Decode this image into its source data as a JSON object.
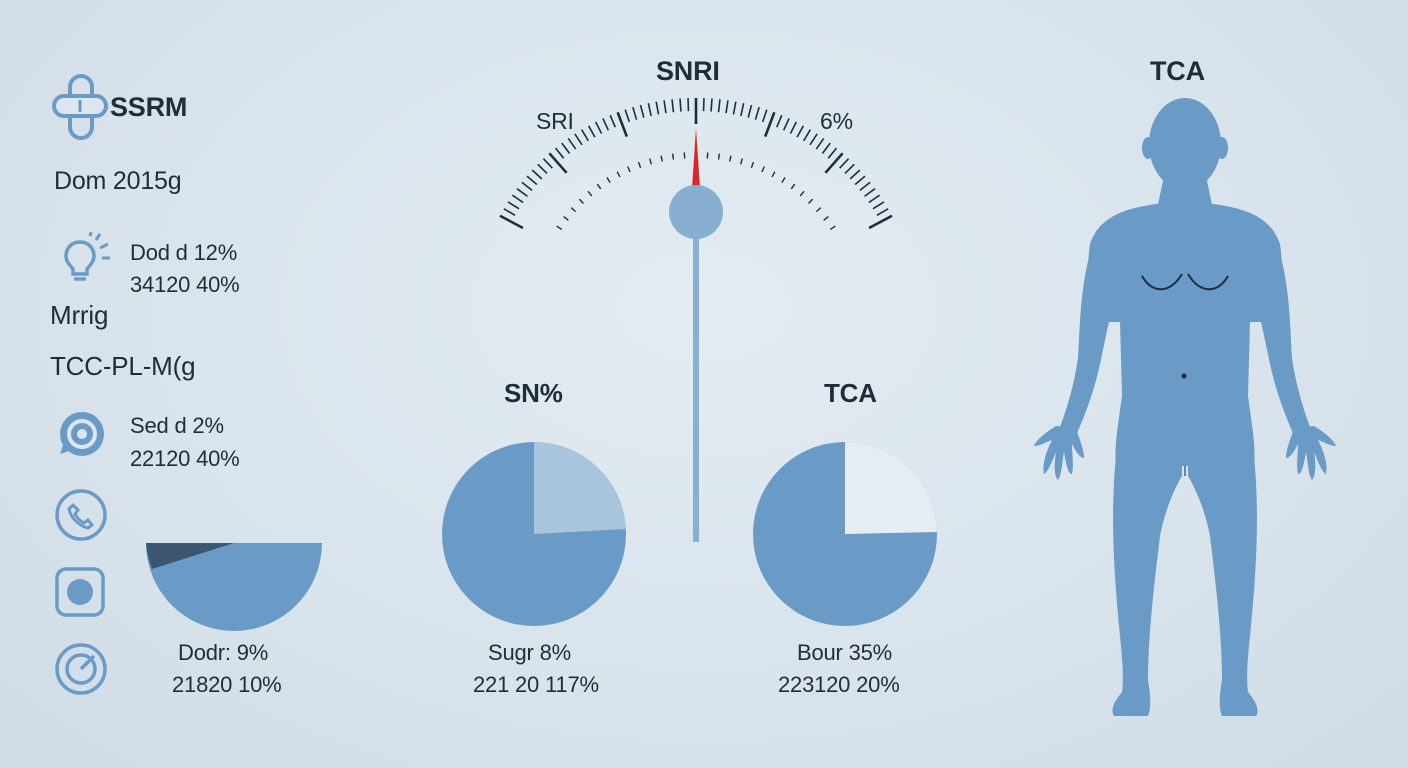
{
  "colors": {
    "background": "#dde6ee",
    "primary_blue": "#6a9bc6",
    "light_blue": "#a9c5dd",
    "pale_slice": "#e6edf2",
    "dark_slice": "#3d5670",
    "needle_red": "#d8262b",
    "text": "#1f2d3a"
  },
  "left_panel": {
    "brand_label": "SSRM",
    "dosage_label": "Dom 2015g",
    "stat1": {
      "line1": "Dod d 12%",
      "line2": "34120 40%"
    },
    "heading2": "Mrrig",
    "heading3": "TCC-PL-M(g",
    "stat2": {
      "line1": "Sed d 2%",
      "line2": "22120 40%"
    },
    "icons": [
      "pill-capsule-icon",
      "lightbulb-icon",
      "target-ring-icon",
      "phone-icon",
      "square-dot-icon",
      "gauge-ring-icon"
    ]
  },
  "gauge": {
    "title": "SNRI",
    "left_label": "SRI",
    "right_label": "6%",
    "needle_value": 0.5
  },
  "pies": [
    {
      "title": "",
      "caption_line1": "Dodr: 9%",
      "caption_line2": "21820 10%"
    },
    {
      "title": "SN%",
      "caption_line1": "Sugr 8%",
      "caption_line2": "221 20 117%"
    },
    {
      "title": "TCA",
      "caption_line1": "Bour 35%",
      "caption_line2": "223120 20%"
    }
  ],
  "body_figure": {
    "title": "TCA"
  }
}
